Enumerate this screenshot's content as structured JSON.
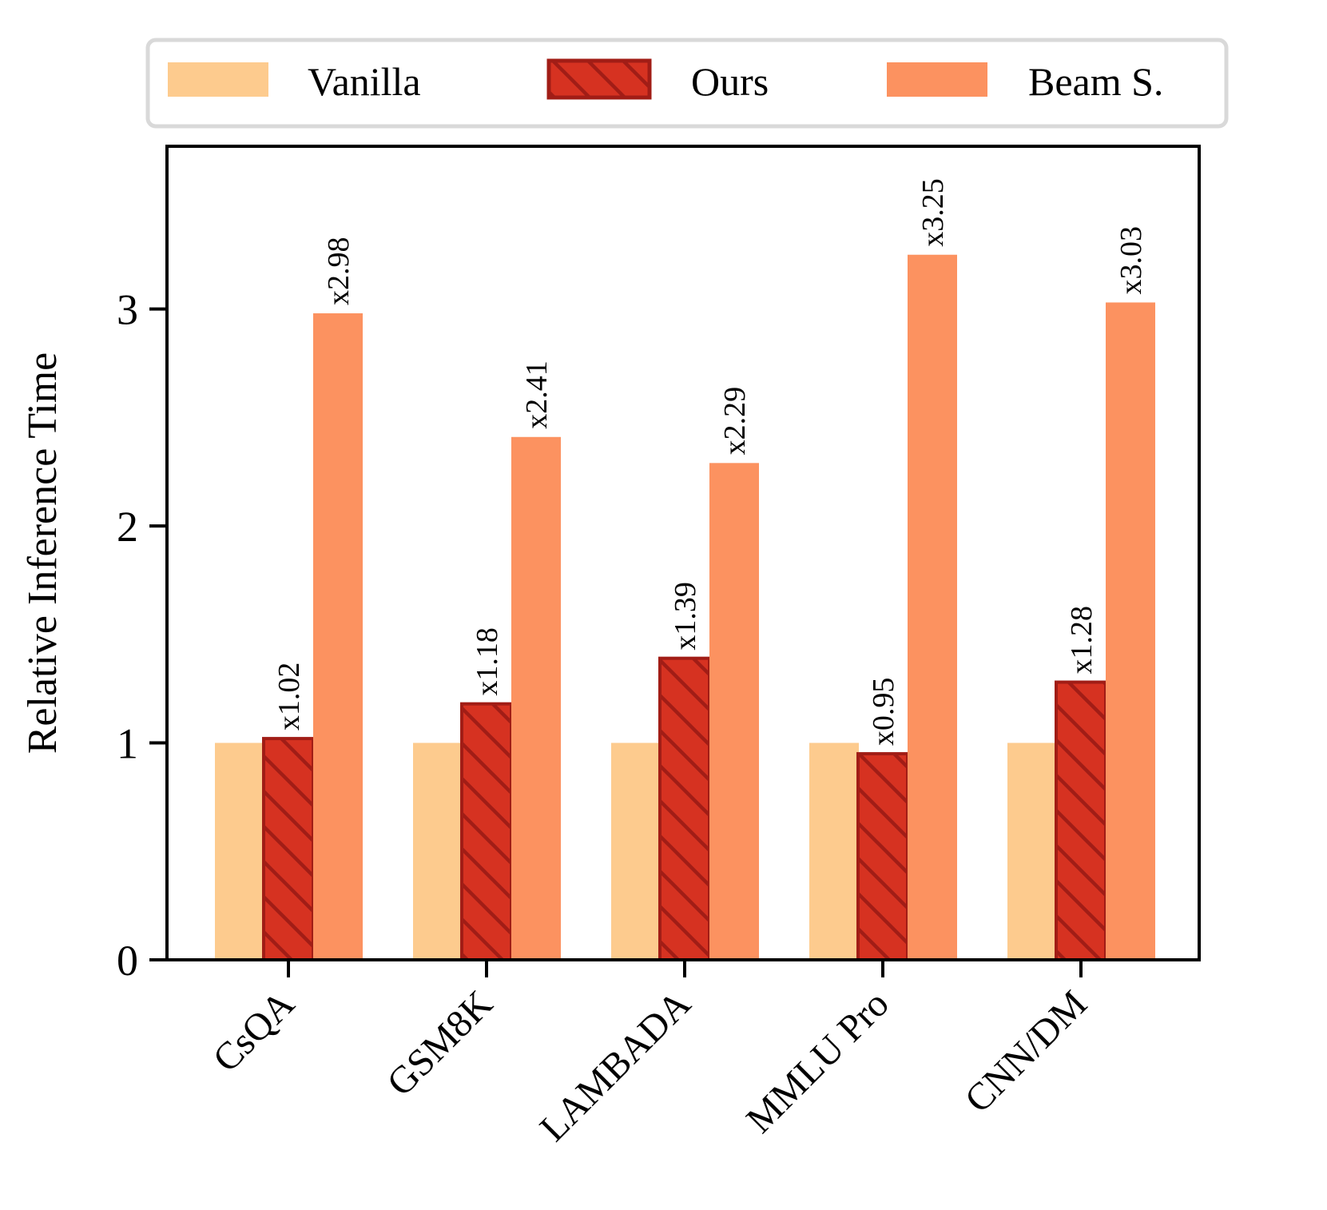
{
  "chart_data": {
    "type": "bar",
    "title": "",
    "xlabel": "",
    "ylabel": "Relative Inference Time",
    "ylim": [
      0,
      3.75
    ],
    "yticks": [
      0,
      1,
      2,
      3
    ],
    "grid": false,
    "legend_position": "top",
    "categories": [
      "CsQA",
      "GSM8K",
      "LAMBADA",
      "MMLU Pro",
      "CNN/DM"
    ],
    "series": [
      {
        "name": "Vanilla",
        "color": "#FDCB8E",
        "hatch": false,
        "values": [
          1.0,
          1.0,
          1.0,
          1.0,
          1.0
        ],
        "labels": [
          "",
          "",
          "",
          "",
          ""
        ]
      },
      {
        "name": "Ours",
        "color": "#D63221",
        "edge_color": "#A11D16",
        "hatch": true,
        "values": [
          1.02,
          1.18,
          1.39,
          0.95,
          1.28
        ],
        "labels": [
          "x1.02",
          "x1.18",
          "x1.39",
          "x0.95",
          "x1.28"
        ]
      },
      {
        "name": "Beam S.",
        "color": "#FC9260",
        "hatch": false,
        "values": [
          2.98,
          2.41,
          2.29,
          3.25,
          3.03
        ],
        "labels": [
          "x2.98",
          "x2.41",
          "x2.29",
          "x3.25",
          "x3.03"
        ]
      }
    ]
  }
}
